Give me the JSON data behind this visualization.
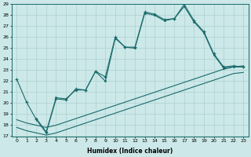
{
  "xlabel": "Humidex (Indice chaleur)",
  "bg_color": "#cce8e8",
  "line_color": "#1a6b6b",
  "grid_color": "#aed0d0",
  "ylim": [
    17,
    29
  ],
  "xlim": [
    -0.5,
    23.5
  ],
  "yticks": [
    17,
    18,
    19,
    20,
    21,
    22,
    23,
    24,
    25,
    26,
    27,
    28,
    29
  ],
  "xticks": [
    0,
    1,
    2,
    3,
    4,
    5,
    6,
    7,
    8,
    9,
    10,
    11,
    12,
    13,
    14,
    15,
    16,
    17,
    18,
    19,
    20,
    21,
    22,
    23
  ],
  "line1_x": [
    0,
    1,
    2,
    3,
    4,
    5,
    6,
    7,
    8,
    9,
    10,
    11,
    12,
    13,
    14,
    15,
    16,
    17,
    18,
    19,
    20,
    21,
    22,
    23
  ],
  "line1_y": [
    22.2,
    20.1,
    18.5,
    17.3,
    20.4,
    20.3,
    21.3,
    21.2,
    22.9,
    22.4,
    26.0,
    25.1,
    25.1,
    28.3,
    28.1,
    27.6,
    27.7,
    29.0,
    27.5,
    26.5,
    24.5,
    23.3,
    23.4,
    23.3
  ],
  "line2_x": [
    0,
    1,
    2,
    3,
    4,
    5,
    6,
    7,
    8,
    9,
    10,
    11,
    12,
    13,
    14,
    15,
    16,
    17,
    18,
    19,
    20,
    21,
    22,
    23
  ],
  "line2_y": [
    18.5,
    18.2,
    18.0,
    17.8,
    18.0,
    18.3,
    18.6,
    18.9,
    19.2,
    19.5,
    19.8,
    20.1,
    20.4,
    20.7,
    21.0,
    21.3,
    21.6,
    21.9,
    22.2,
    22.5,
    22.8,
    23.1,
    23.3,
    23.4
  ],
  "line3_x": [
    0,
    1,
    2,
    3,
    4,
    5,
    6,
    7,
    8,
    9,
    10,
    11,
    12,
    13,
    14,
    15,
    16,
    17,
    18,
    19,
    20,
    21,
    22,
    23
  ],
  "line3_y": [
    17.8,
    17.5,
    17.3,
    17.1,
    17.3,
    17.6,
    17.9,
    18.2,
    18.5,
    18.8,
    19.1,
    19.4,
    19.7,
    20.0,
    20.3,
    20.6,
    20.9,
    21.2,
    21.5,
    21.8,
    22.1,
    22.4,
    22.7,
    22.8
  ],
  "line4_x": [
    2,
    3,
    4,
    5,
    6,
    7,
    8,
    9,
    10,
    11,
    12,
    13,
    14,
    15,
    16,
    17,
    18,
    19,
    20,
    21,
    22,
    23
  ],
  "line4_y": [
    18.6,
    17.4,
    20.5,
    20.4,
    21.2,
    21.2,
    22.9,
    22.0,
    25.9,
    25.1,
    25.0,
    28.2,
    28.0,
    27.5,
    27.7,
    28.8,
    27.4,
    26.4,
    24.4,
    23.2,
    23.3,
    23.3
  ]
}
